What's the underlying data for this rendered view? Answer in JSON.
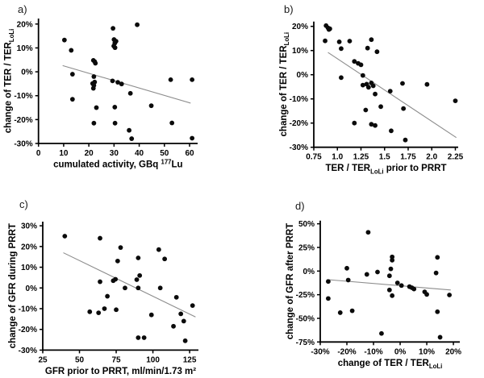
{
  "figure": {
    "background": "#ffffff",
    "dot_color": "#0b0b0b",
    "trend_color": "#8c8c8c",
    "axis_color": "#000000"
  },
  "chart_data": [
    {
      "id": "a",
      "type": "scatter",
      "panel_label": "a)",
      "xlabel_segments": [
        {
          "t": "cumulated activity, GBq "
        },
        {
          "t": "177",
          "style": "sup"
        },
        {
          "t": "Lu"
        }
      ],
      "ylabel_segments": [
        {
          "t": "change of TER / TER"
        },
        {
          "t": "LoLi",
          "style": "sub"
        }
      ],
      "xlim": [
        0,
        63.2
      ],
      "ylim": [
        -30,
        22.3
      ],
      "xticks": [
        {
          "v": 0,
          "label": "0"
        },
        {
          "v": 10,
          "label": "10"
        },
        {
          "v": 20,
          "label": "20"
        },
        {
          "v": 30,
          "label": "30"
        },
        {
          "v": 40,
          "label": "40"
        },
        {
          "v": 50,
          "label": "50"
        },
        {
          "v": 60,
          "label": "60"
        }
      ],
      "yticks": [
        {
          "v": 20,
          "label": "20%"
        },
        {
          "v": 10,
          "label": "10%"
        },
        {
          "v": 0,
          "label": "0%"
        },
        {
          "v": -10,
          "label": "-10%"
        },
        {
          "v": -20,
          "label": "-20%"
        },
        {
          "v": -30,
          "label": "-30%"
        }
      ],
      "points": [
        [
          10.3,
          13.3
        ],
        [
          13,
          9
        ],
        [
          13.5,
          -1
        ],
        [
          13.5,
          -11.5
        ],
        [
          21.8,
          4.8
        ],
        [
          22.3,
          4.3
        ],
        [
          22.6,
          3.6
        ],
        [
          22,
          -2
        ],
        [
          21.5,
          -4.9
        ],
        [
          22.3,
          -4.3
        ],
        [
          22,
          -5.7
        ],
        [
          21.8,
          -6.9
        ],
        [
          23,
          -15
        ],
        [
          22,
          -21.5
        ],
        [
          29.6,
          18.2
        ],
        [
          30,
          13.5
        ],
        [
          30.8,
          12.8
        ],
        [
          30.3,
          12
        ],
        [
          29.9,
          10.8
        ],
        [
          30.4,
          10.1
        ],
        [
          29.4,
          -3.8
        ],
        [
          31.5,
          -4.4
        ],
        [
          33,
          -5.1
        ],
        [
          30.3,
          -14.8
        ],
        [
          30.4,
          -21.5
        ],
        [
          36.5,
          -9
        ],
        [
          36,
          -24.5
        ],
        [
          37,
          -28
        ],
        [
          39.2,
          19.7
        ],
        [
          44.8,
          -14.2
        ],
        [
          52.5,
          -3.3
        ],
        [
          53,
          -21.4
        ],
        [
          61,
          -3.3
        ],
        [
          61,
          -27.8
        ]
      ],
      "trend": {
        "x1": 9.6,
        "y1": 2.6,
        "x2": 60.4,
        "y2": -13.1
      }
    },
    {
      "id": "b",
      "type": "scatter",
      "panel_label": "b)",
      "xlabel_segments": [
        {
          "t": "TER / TER"
        },
        {
          "t": "LoLi",
          "style": "sub"
        },
        {
          "t": " prior to PRRT"
        }
      ],
      "ylabel_segments": [
        {
          "t": "change of TER / TER"
        },
        {
          "t": "LoLi",
          "style": "sub"
        }
      ],
      "xlim": [
        0.75,
        2.28
      ],
      "ylim": [
        -30,
        22
      ],
      "xticks": [
        {
          "v": 0.75,
          "label": "0.75"
        },
        {
          "v": 1.0,
          "label": "1.0"
        },
        {
          "v": 1.25,
          "label": "1.25"
        },
        {
          "v": 1.5,
          "label": "1.5"
        },
        {
          "v": 1.75,
          "label": "1.75"
        },
        {
          "v": 2.0,
          "label": "2.0"
        },
        {
          "v": 2.25,
          "label": "2.25"
        }
      ],
      "yticks": [
        {
          "v": 20,
          "label": "20%"
        },
        {
          "v": 10,
          "label": "10%"
        },
        {
          "v": 0,
          "label": "0%"
        },
        {
          "v": -10,
          "label": "-10%"
        },
        {
          "v": -20,
          "label": "-20%"
        },
        {
          "v": -30,
          "label": "-30%"
        }
      ],
      "points": [
        [
          0.88,
          20.3
        ],
        [
          0.9,
          19.4
        ],
        [
          0.91,
          18.7
        ],
        [
          0.92,
          19.0
        ],
        [
          0.87,
          14.0
        ],
        [
          1.02,
          13.6
        ],
        [
          1.13,
          13.9
        ],
        [
          1.04,
          10.8
        ],
        [
          1.04,
          -1.2
        ],
        [
          1.18,
          5.5
        ],
        [
          1.18,
          -20
        ],
        [
          1.22,
          4.7
        ],
        [
          1.25,
          4.1
        ],
        [
          1.27,
          -0.3
        ],
        [
          1.27,
          -4.3
        ],
        [
          1.31,
          -3.9
        ],
        [
          1.36,
          -3.4
        ],
        [
          1.38,
          -4.6
        ],
        [
          1.33,
          -5.2
        ],
        [
          1.3,
          -14.6
        ],
        [
          1.32,
          11.0
        ],
        [
          1.36,
          14.5
        ],
        [
          1.42,
          9.5
        ],
        [
          1.4,
          -8
        ],
        [
          1.46,
          -13.2
        ],
        [
          1.36,
          -20.5
        ],
        [
          1.4,
          -21
        ],
        [
          1.56,
          -6.8
        ],
        [
          1.57,
          -23.2
        ],
        [
          1.69,
          -3.6
        ],
        [
          1.7,
          -14
        ],
        [
          1.72,
          -27
        ],
        [
          1.95,
          -4
        ],
        [
          2.25,
          -10.8
        ]
      ],
      "trend": {
        "x1": 0.9,
        "y1": 9.2,
        "x2": 2.26,
        "y2": -26
      }
    },
    {
      "id": "c",
      "type": "scatter",
      "panel_label": "c)",
      "xlabel_segments": [
        {
          "t": "GFR prior to PRRT, ml/min/1.73 m²"
        }
      ],
      "ylabel_segments": [
        {
          "t": "change of GFR during PRRT"
        }
      ],
      "xlim": [
        25,
        131
      ],
      "ylim": [
        -30,
        32
      ],
      "xticks": [
        {
          "v": 25,
          "label": "25"
        },
        {
          "v": 50,
          "label": "50"
        },
        {
          "v": 75,
          "label": "75"
        },
        {
          "v": 100,
          "label": "100"
        },
        {
          "v": 125,
          "label": "125"
        }
      ],
      "yticks": [
        {
          "v": 30,
          "label": "30%"
        },
        {
          "v": 20,
          "label": "20%"
        },
        {
          "v": 10,
          "label": "10%"
        },
        {
          "v": 0,
          "label": "0%"
        },
        {
          "v": -10,
          "label": "-10%"
        },
        {
          "v": -20,
          "label": "-20%"
        },
        {
          "v": -30,
          "label": "-30%"
        }
      ],
      "points": [
        [
          40,
          25
        ],
        [
          57,
          -11.5
        ],
        [
          63,
          -12
        ],
        [
          64,
          24
        ],
        [
          64,
          3
        ],
        [
          67,
          -10
        ],
        [
          69,
          -4
        ],
        [
          73,
          3.5
        ],
        [
          74.5,
          4.2
        ],
        [
          75,
          -10.5
        ],
        [
          76,
          13
        ],
        [
          78,
          19.5
        ],
        [
          81,
          0
        ],
        [
          89,
          4
        ],
        [
          90,
          14.5
        ],
        [
          90,
          0
        ],
        [
          90,
          -24
        ],
        [
          91,
          6
        ],
        [
          94,
          -24
        ],
        [
          99,
          -13
        ],
        [
          104,
          18.5
        ],
        [
          105,
          0
        ],
        [
          108,
          14
        ],
        [
          114,
          -18.5
        ],
        [
          116,
          -4.5
        ],
        [
          119,
          -12.5
        ],
        [
          121,
          -16
        ],
        [
          122,
          -25.5
        ],
        [
          127,
          -8.5
        ]
      ],
      "trend": {
        "x1": 39,
        "y1": 17,
        "x2": 129,
        "y2": -14
      }
    },
    {
      "id": "d",
      "type": "scatter",
      "panel_label": "d)",
      "xlabel_segments": [
        {
          "t": "change of TER / TER"
        },
        {
          "t": "LoLi",
          "style": "sub"
        }
      ],
      "ylabel_segments": [
        {
          "t": "change of GFR after PRRT"
        }
      ],
      "xlim": [
        -30,
        22.4
      ],
      "ylim": [
        -75,
        53.3
      ],
      "xticks": [
        {
          "v": -30,
          "label": "-30%"
        },
        {
          "v": -20,
          "label": "-20%"
        },
        {
          "v": -10,
          "label": "-10%"
        },
        {
          "v": 0,
          "label": "0%"
        },
        {
          "v": 10,
          "label": "10%"
        },
        {
          "v": 20,
          "label": "20%"
        }
      ],
      "yticks": [
        {
          "v": 50,
          "label": "50%"
        },
        {
          "v": 25,
          "label": "25%"
        },
        {
          "v": 0,
          "label": "0%"
        },
        {
          "v": -25,
          "label": "-25%"
        },
        {
          "v": -50,
          "label": "-50%"
        },
        {
          "v": -75,
          "label": "-75%"
        }
      ],
      "points": [
        [
          -27,
          -11
        ],
        [
          -27,
          -29
        ],
        [
          -22.5,
          -44
        ],
        [
          -20,
          3
        ],
        [
          -19.5,
          -9.5
        ],
        [
          -18,
          -42
        ],
        [
          -12,
          41
        ],
        [
          -12.5,
          -3.5
        ],
        [
          -8.5,
          -1
        ],
        [
          -7,
          -66
        ],
        [
          -3,
          15
        ],
        [
          -3,
          11.5
        ],
        [
          -3.5,
          2.3
        ],
        [
          -4,
          -5
        ],
        [
          -4,
          -20
        ],
        [
          -3,
          -26
        ],
        [
          -1,
          -12.5
        ],
        [
          0.5,
          -15.3
        ],
        [
          3.5,
          -16.5
        ],
        [
          4.4,
          -17.6
        ],
        [
          5.2,
          -19
        ],
        [
          9.2,
          -22
        ],
        [
          10,
          -24.7
        ],
        [
          14,
          14.5
        ],
        [
          13.5,
          -2
        ],
        [
          14,
          -43
        ],
        [
          15,
          -70
        ],
        [
          18.5,
          -25.3
        ]
      ],
      "trend": {
        "x1": -27.5,
        "y1": -9,
        "x2": 19,
        "y2": -20
      }
    }
  ]
}
